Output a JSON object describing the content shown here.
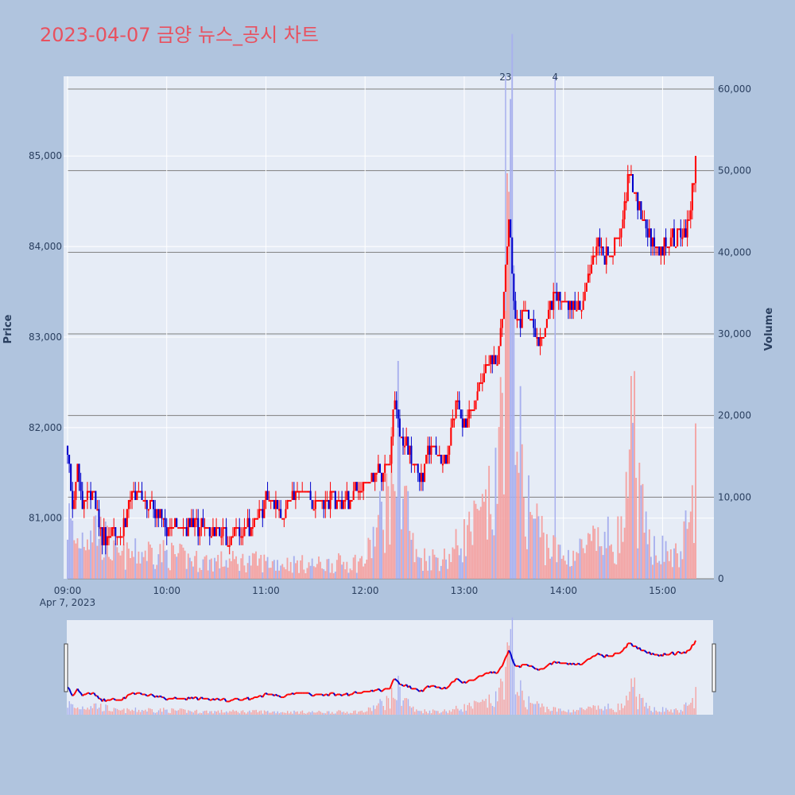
{
  "title": "2023-04-07 금양 뉴스_공시 차트",
  "colors": {
    "page_background": "#b0c4de",
    "plot_background": "#e6ecf6",
    "up": "#ff0000",
    "down": "#0000cc",
    "volume_up": "#f4a3a3",
    "volume_down": "#a8b0ee",
    "news_line": "#a8b0ee",
    "title": "#e8515f",
    "axis_text": "#2a3f5f"
  },
  "chart_data": {
    "type": "candlestick",
    "title": "2023-04-07 금양 뉴스_공시 차트",
    "xlabel": "",
    "ylabel": "Price",
    "y2label": "Volume",
    "date_label": "Apr 7, 2023",
    "x_ticks": [
      "09:00",
      "10:00",
      "11:00",
      "12:00",
      "13:00",
      "14:00",
      "15:00"
    ],
    "y_ticks": [
      81000,
      82000,
      83000,
      84000,
      85000
    ],
    "y_tick_labels": [
      "81,000",
      "82,000",
      "83,000",
      "84,000",
      "85,000"
    ],
    "y2_ticks": [
      0,
      10000,
      20000,
      30000,
      40000,
      50000,
      60000
    ],
    "y2_tick_labels": [
      "0",
      "10,000",
      "20,000",
      "30,000",
      "40,000",
      "50,000",
      "60,000"
    ],
    "price_range": [
      80330,
      85880
    ],
    "volume_range": [
      0,
      60000
    ],
    "grid": true,
    "news_markers": [
      {
        "time": "13:25",
        "label": "23"
      },
      {
        "time": "13:29",
        "label": ""
      },
      {
        "time": "13:55",
        "label": "4"
      }
    ],
    "price_keyframes": [
      [
        "09:00",
        81800
      ],
      [
        "09:03",
        81000
      ],
      [
        "09:06",
        81500
      ],
      [
        "09:09",
        81100
      ],
      [
        "09:12",
        81200
      ],
      [
        "09:15",
        81300
      ],
      [
        "09:18",
        81000
      ],
      [
        "09:21",
        80800
      ],
      [
        "09:24",
        80700
      ],
      [
        "09:27",
        80900
      ],
      [
        "09:30",
        80800
      ],
      [
        "09:35",
        81000
      ],
      [
        "09:40",
        81300
      ],
      [
        "09:45",
        81200
      ],
      [
        "09:50",
        81100
      ],
      [
        "09:55",
        81100
      ],
      [
        "10:00",
        80900
      ],
      [
        "10:10",
        80900
      ],
      [
        "10:20",
        80900
      ],
      [
        "10:30",
        80800
      ],
      [
        "10:40",
        80800
      ],
      [
        "10:50",
        80900
      ],
      [
        "10:55",
        81000
      ],
      [
        "11:00",
        81200
      ],
      [
        "11:10",
        81100
      ],
      [
        "11:20",
        81300
      ],
      [
        "11:30",
        81200
      ],
      [
        "11:40",
        81200
      ],
      [
        "11:50",
        81200
      ],
      [
        "12:00",
        81400
      ],
      [
        "12:10",
        81500
      ],
      [
        "12:15",
        81700
      ],
      [
        "12:18",
        82300
      ],
      [
        "12:22",
        81900
      ],
      [
        "12:27",
        81700
      ],
      [
        "12:30",
        81500
      ],
      [
        "12:35",
        81500
      ],
      [
        "12:40",
        81800
      ],
      [
        "12:45",
        81700
      ],
      [
        "12:50",
        81700
      ],
      [
        "12:55",
        82300
      ],
      [
        "13:00",
        82000
      ],
      [
        "13:05",
        82200
      ],
      [
        "13:10",
        82500
      ],
      [
        "13:15",
        82800
      ],
      [
        "13:20",
        82700
      ],
      [
        "13:24",
        83500
      ],
      [
        "13:27",
        84300
      ],
      [
        "13:31",
        83200
      ],
      [
        "13:34",
        83200
      ],
      [
        "13:40",
        83200
      ],
      [
        "13:45",
        82900
      ],
      [
        "13:50",
        83200
      ],
      [
        "13:55",
        83500
      ],
      [
        "14:00",
        83300
      ],
      [
        "14:10",
        83300
      ],
      [
        "14:15",
        83600
      ],
      [
        "14:20",
        84100
      ],
      [
        "14:25",
        83900
      ],
      [
        "14:30",
        84000
      ],
      [
        "14:35",
        84200
      ],
      [
        "14:40",
        84800
      ],
      [
        "14:45",
        84500
      ],
      [
        "14:50",
        84200
      ],
      [
        "14:55",
        84000
      ],
      [
        "15:00",
        84000
      ],
      [
        "15:05",
        84100
      ],
      [
        "15:10",
        84100
      ],
      [
        "15:15",
        84200
      ],
      [
        "15:20",
        84900
      ]
    ],
    "volume_keyframes": [
      [
        "09:00",
        9000
      ],
      [
        "09:05",
        5000
      ],
      [
        "09:15",
        8000
      ],
      [
        "09:30",
        3000
      ],
      [
        "09:50",
        4000
      ],
      [
        "10:20",
        2500
      ],
      [
        "10:50",
        2500
      ],
      [
        "11:30",
        2000
      ],
      [
        "12:00",
        2500
      ],
      [
        "12:15",
        12000
      ],
      [
        "12:20",
        20000
      ],
      [
        "12:30",
        3000
      ],
      [
        "12:50",
        3000
      ],
      [
        "13:00",
        6000
      ],
      [
        "13:10",
        8000
      ],
      [
        "13:20",
        12000
      ],
      [
        "13:25",
        38000
      ],
      [
        "13:29",
        50000
      ],
      [
        "13:35",
        12000
      ],
      [
        "13:50",
        5000
      ],
      [
        "14:00",
        3000
      ],
      [
        "14:20",
        5000
      ],
      [
        "14:35",
        6000
      ],
      [
        "14:40",
        12000
      ],
      [
        "14:42",
        25000
      ],
      [
        "14:45",
        12000
      ],
      [
        "14:50",
        6000
      ],
      [
        "15:00",
        4000
      ],
      [
        "15:10",
        3000
      ],
      [
        "15:18",
        10000
      ],
      [
        "15:20",
        18000
      ]
    ]
  }
}
